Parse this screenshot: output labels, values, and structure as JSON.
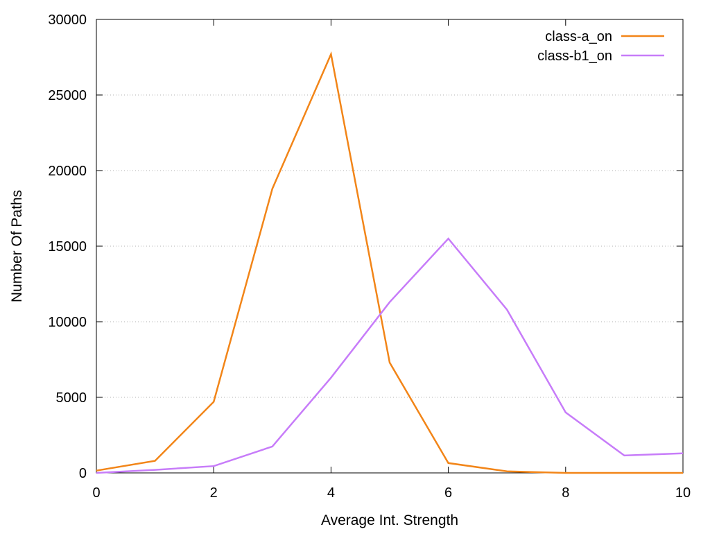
{
  "chart_data": {
    "type": "line",
    "title": "",
    "xlabel": "Average Int. Strength",
    "ylabel": "Number Of Paths",
    "xlim": [
      0,
      10
    ],
    "ylim": [
      0,
      30000
    ],
    "xticks": [
      0,
      2,
      4,
      6,
      8,
      10
    ],
    "yticks": [
      0,
      5000,
      10000,
      15000,
      20000,
      25000,
      30000
    ],
    "grid": "horizontal dotted",
    "legend_position": "top-right",
    "x": [
      0,
      1,
      2,
      3,
      4,
      5,
      6,
      7,
      8,
      9,
      10
    ],
    "series": [
      {
        "name": "class-a_on",
        "color": "#f28518",
        "values": [
          150,
          800,
          4700,
          18800,
          27700,
          7300,
          650,
          100,
          0,
          0,
          0
        ]
      },
      {
        "name": "class-b1_on",
        "color": "#c77cf9",
        "values": [
          0,
          200,
          450,
          1750,
          6300,
          11300,
          15500,
          10800,
          4000,
          1150,
          1300
        ]
      }
    ]
  }
}
